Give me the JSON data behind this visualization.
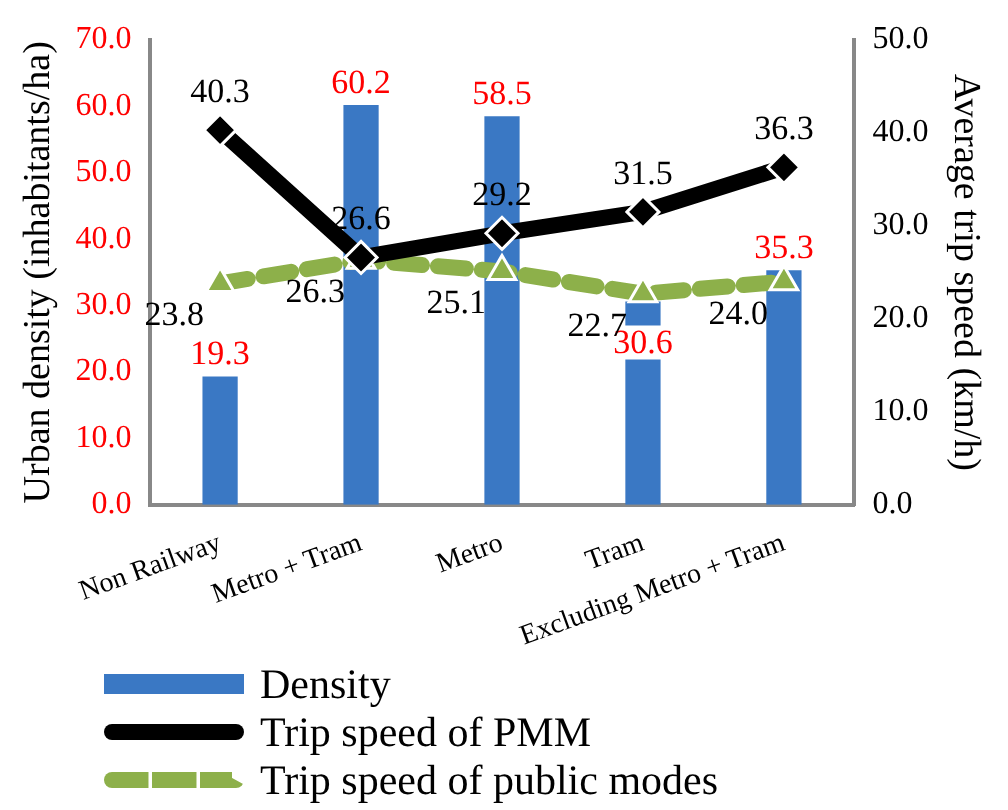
{
  "chart_data": {
    "type": "bar",
    "ylabel": "Urban density (inhabitants/ha)",
    "y2label": "Average trip speed (km/h)",
    "categories": [
      "Non Railway",
      "Metro + Tram",
      "Metro",
      "Tram",
      "Excluding Metro + Tram"
    ],
    "series": [
      {
        "name": "Density",
        "type": "bar",
        "color": "#3a78c4",
        "values": [
          19.3,
          60.2,
          58.5,
          30.6,
          35.3
        ],
        "value_labels": [
          "19.3",
          "60.2",
          "58.5",
          "30.6",
          "35.3"
        ]
      },
      {
        "name": "Trip speed of PMM",
        "type": "line",
        "axis": "y2",
        "color": "#000000",
        "marker": "diamond",
        "line_style": "solid",
        "values": [
          40.3,
          26.6,
          29.2,
          31.5,
          36.3
        ],
        "value_labels": [
          "40.3",
          "26.6",
          "29.2",
          "31.5",
          "36.3"
        ]
      },
      {
        "name": "Trip speed of public modes",
        "type": "line",
        "axis": "y2",
        "color": "#8db04a",
        "marker": "triangle",
        "line_style": "dashed",
        "values": [
          23.8,
          26.3,
          25.1,
          22.7,
          24.0
        ],
        "value_labels": [
          "23.8",
          "26.3",
          "25.1",
          "22.7",
          "24.0"
        ]
      }
    ],
    "ylim": [
      0,
      70
    ],
    "yticks": [
      {
        "value": 0,
        "label": "0.0"
      },
      {
        "value": 10,
        "label": "10.0"
      },
      {
        "value": 20,
        "label": "20.0"
      },
      {
        "value": 30,
        "label": "30.0"
      },
      {
        "value": 40,
        "label": "40.0"
      },
      {
        "value": 50,
        "label": "50.0"
      },
      {
        "value": 60,
        "label": "60.0"
      },
      {
        "value": 70,
        "label": "70.0"
      }
    ],
    "y2lim": [
      0,
      50
    ],
    "y2ticks": [
      {
        "value": 0,
        "label": "0.0"
      },
      {
        "value": 10,
        "label": "10.0"
      },
      {
        "value": 20,
        "label": "20.0"
      },
      {
        "value": 30,
        "label": "30.0"
      },
      {
        "value": 40,
        "label": "40.0"
      },
      {
        "value": 50,
        "label": "50.0"
      }
    ],
    "grid": false,
    "legend": "bottom"
  }
}
